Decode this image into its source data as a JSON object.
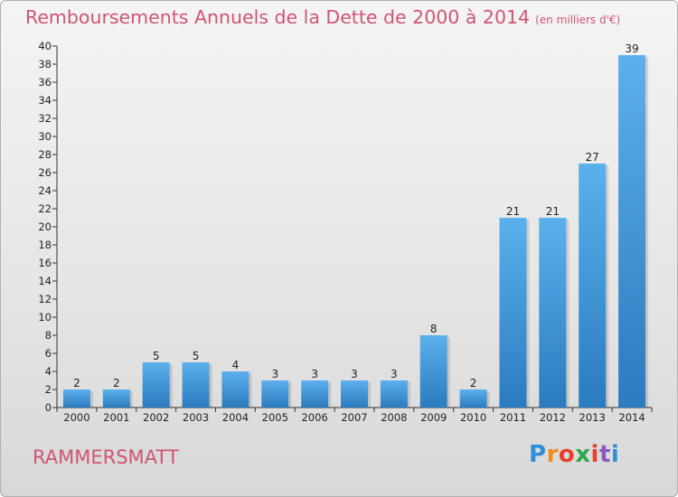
{
  "chart_data": {
    "type": "bar",
    "title": "Remboursements Annuels de la Dette de 2000 à 2014",
    "subtitle": "(en milliers d'€)",
    "categories": [
      "2000",
      "2001",
      "2002",
      "2003",
      "2004",
      "2005",
      "2006",
      "2007",
      "2008",
      "2009",
      "2010",
      "2011",
      "2012",
      "2013",
      "2014"
    ],
    "values": [
      2,
      2,
      5,
      5,
      4,
      3,
      3,
      3,
      3,
      8,
      2,
      21,
      21,
      27,
      39
    ],
    "ylim": [
      0,
      40
    ],
    "yticks": [
      0,
      2,
      4,
      6,
      8,
      10,
      12,
      14,
      16,
      18,
      20,
      22,
      24,
      26,
      28,
      30,
      32,
      34,
      36,
      38,
      40
    ],
    "grid": false,
    "bar_color": "#3d8fd2"
  },
  "commune": "RAMMERSMATT",
  "logo": {
    "text": "Proxiti",
    "letter_colors": [
      "#2f8fd8",
      "#f08a1c",
      "#e83e2e",
      "#2aa84a",
      "#e83e2e",
      "#8a58c4",
      "#2f8fd8"
    ]
  }
}
